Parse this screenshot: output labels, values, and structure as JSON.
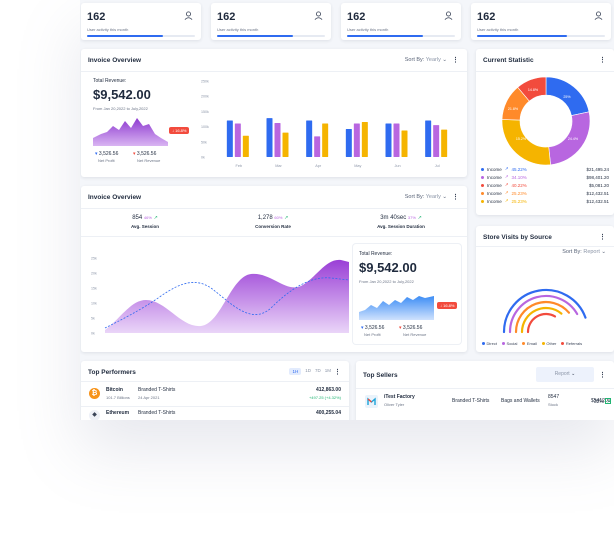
{
  "stat_cards": [
    {
      "value": "162",
      "label": "User activity this month",
      "progress": 0.7
    },
    {
      "value": "162",
      "label": "User activity this month",
      "progress": 0.7
    },
    {
      "value": "162",
      "label": "User activity this month",
      "progress": 0.7
    },
    {
      "value": "162",
      "label": "User activity this month",
      "progress": 0.7
    }
  ],
  "invoice1": {
    "title": "Invoice Overview",
    "sort_label": "Sort By:",
    "sort_value": "Yearly",
    "revenue_label": "Total Revenue:",
    "revenue_value": "$9,542.00",
    "date_range": "From Jan 20,2022 to July,2022",
    "badge": "16.8%",
    "net_profit_value": "3,526.56",
    "net_profit_label": "Net Profit",
    "net_revenue_value": "3,526.56",
    "net_revenue_label": "Net Revenue"
  },
  "chart_data": [
    {
      "type": "bar",
      "categories": [
        "Feb",
        "Mar",
        "Apr",
        "May",
        "Jun",
        "Jul"
      ],
      "ylim": [
        0,
        250
      ],
      "yticks": [
        "0k",
        "50k",
        "100k",
        "150k",
        "200k",
        "250k"
      ],
      "series": [
        {
          "color": "#2f6bf0",
          "values": [
            120,
            128,
            120,
            92,
            110,
            120
          ]
        },
        {
          "color": "#b866e0",
          "values": [
            110,
            112,
            68,
            110,
            110,
            105
          ]
        },
        {
          "color": "#f5b400",
          "values": [
            70,
            80,
            110,
            115,
            87,
            90
          ]
        }
      ]
    },
    {
      "type": "area",
      "yticks": [
        "0k",
        "5k",
        "10k",
        "15k",
        "20k",
        "25k"
      ]
    }
  ],
  "invoice2": {
    "title": "Invoice Overview",
    "sort_label": "Sort By:",
    "sort_value": "Yearly",
    "metrics": [
      {
        "value": "854",
        "change": "46%",
        "label": "Avg. Session"
      },
      {
        "value": "1,278",
        "change": "60%",
        "label": "Conversion Rate"
      },
      {
        "value": "3m 40sec",
        "change": "37%",
        "label": "Avg. Session Duration"
      }
    ],
    "revenue_label": "Total Revenue:",
    "revenue_value": "$9,542.00",
    "date_range": "From Jan 20,2022 to July,2022",
    "badge": "16.8%",
    "net_profit_value": "3,526.56",
    "net_profit_label": "Net Profit",
    "net_revenue_value": "3,526.56",
    "net_revenue_label": "Net Revenue"
  },
  "current_statistic": {
    "title": "Current Statistic",
    "donut_labels": [
      "14.8%",
      "25%",
      "15.2%",
      "24.4%",
      "21.8%"
    ],
    "legend": [
      {
        "label": "Income",
        "change": "45.22%",
        "value": "$21,495.24",
        "color": "#2f6bf0"
      },
      {
        "label": "Income",
        "change": "34.10%",
        "value": "$98,401.20",
        "color": "#b866e0"
      },
      {
        "label": "Income",
        "change": "40.22%",
        "value": "$5,081.20",
        "color": "#f24b3d"
      },
      {
        "label": "Income",
        "change": "25.23%",
        "value": "$12,432.51",
        "color": "#ff8a2a"
      },
      {
        "label": "Income",
        "change": "25.23%",
        "value": "$12,432.51",
        "color": "#f5b400"
      }
    ]
  },
  "store_visits": {
    "title": "Store Visits by Source",
    "sort_label": "Sort By:",
    "sort_value": "Report",
    "legend": [
      {
        "label": "Direct",
        "color": "#2f6bf0"
      },
      {
        "label": "Social",
        "color": "#b866e0"
      },
      {
        "label": "Email",
        "color": "#ff8a2a"
      },
      {
        "label": "Other",
        "color": "#f5b400"
      },
      {
        "label": "Referrals",
        "color": "#f24b3d"
      }
    ]
  },
  "top_performers": {
    "title": "Top Performers",
    "tabs": [
      "1H",
      "1D",
      "7D",
      "1M"
    ],
    "rows": [
      {
        "name": "Bitcoin",
        "sub": "101.7 Billions",
        "product": "Branded T-Shirts",
        "date": "24 Apr 2021",
        "value": "412,863.00",
        "change": "+497.25 (+4.32%)"
      },
      {
        "name": "Ethereum",
        "product": "Branded T-Shirts",
        "value": "400,255.04"
      }
    ]
  },
  "top_sellers": {
    "title": "Top Sellers",
    "report_button": "Report",
    "row": {
      "name": "iTest Factory",
      "sub": "Oliver Tyler",
      "product": "Branded T-Shirts",
      "category": "Bags and Wallets",
      "stock_value": "8547",
      "stock_label": "Stock",
      "amount": "$541200",
      "percent": "32%"
    }
  }
}
